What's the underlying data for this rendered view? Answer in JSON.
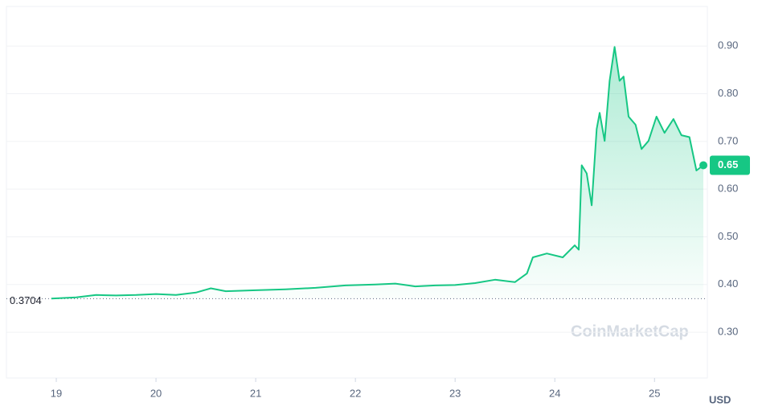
{
  "chart_data": {
    "type": "line",
    "x": [
      18.95,
      19.2,
      19.4,
      19.6,
      19.8,
      20.0,
      20.2,
      20.4,
      20.55,
      20.7,
      21.0,
      21.3,
      21.6,
      21.9,
      22.2,
      22.4,
      22.6,
      22.8,
      23.0,
      23.2,
      23.4,
      23.6,
      23.72,
      23.78,
      23.92,
      24.08,
      24.2,
      24.24,
      24.27,
      24.32,
      24.37,
      24.42,
      24.45,
      24.5,
      24.55,
      24.6,
      24.65,
      24.69,
      24.74,
      24.81,
      24.87,
      24.94,
      25.02,
      25.1,
      25.19,
      25.27,
      25.35,
      25.42,
      25.49
    ],
    "values": [
      0.3704,
      0.373,
      0.378,
      0.377,
      0.378,
      0.38,
      0.378,
      0.383,
      0.392,
      0.386,
      0.388,
      0.39,
      0.393,
      0.398,
      0.4,
      0.402,
      0.396,
      0.398,
      0.399,
      0.403,
      0.41,
      0.405,
      0.423,
      0.457,
      0.465,
      0.457,
      0.482,
      0.473,
      0.65,
      0.633,
      0.566,
      0.726,
      0.76,
      0.701,
      0.827,
      0.898,
      0.827,
      0.836,
      0.752,
      0.735,
      0.684,
      0.701,
      0.752,
      0.718,
      0.747,
      0.713,
      0.709,
      0.639,
      0.65
    ],
    "color": "#16c784",
    "xlim": [
      18.5,
      25.53
    ],
    "xticks": [
      19,
      20,
      21,
      22,
      23,
      24,
      25
    ],
    "ylim": [
      0.204,
      0.983
    ],
    "yticks": [
      {
        "value": 0.3,
        "label": "0.30"
      },
      {
        "value": 0.4,
        "label": "0.40"
      },
      {
        "value": 0.5,
        "label": "0.50"
      },
      {
        "value": 0.6,
        "label": "0.60"
      },
      {
        "value": 0.7,
        "label": "0.70"
      },
      {
        "value": 0.8,
        "label": "0.80"
      },
      {
        "value": 0.9,
        "label": "0.90"
      }
    ],
    "grid": true,
    "reference": 0.3704,
    "current": 0.65,
    "y_unit": "USD",
    "watermark": "CoinMarketCap"
  }
}
